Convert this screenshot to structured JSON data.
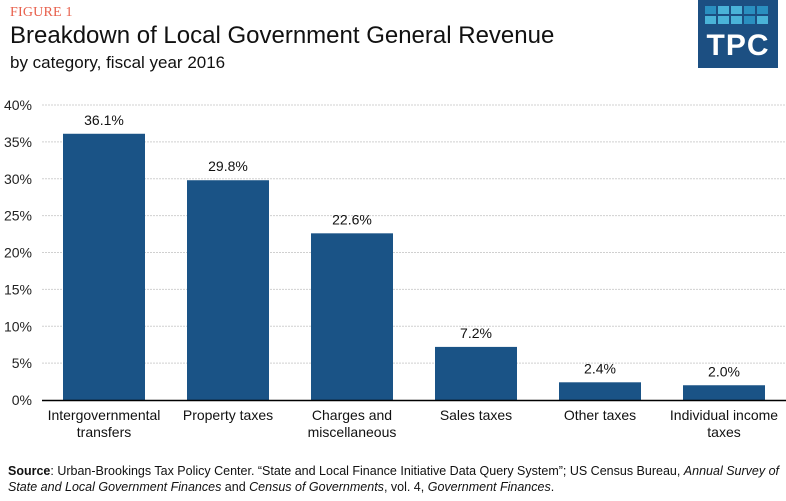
{
  "header": {
    "figure_label": "FIGURE 1",
    "title": "Breakdown of Local Government General Revenue",
    "subtitle": "by category, fiscal year 2016"
  },
  "logo": {
    "text": "TPC",
    "icon": "tpc-grid-logo-icon"
  },
  "colors": {
    "bar": "#1a5386",
    "accent": "#e8604c",
    "logo_bg": "#1c4f82",
    "grid": "#d0d0d0",
    "axis": "#000000"
  },
  "chart_data": {
    "type": "bar",
    "title": "Breakdown of Local Government General Revenue",
    "subtitle": "by category, fiscal year 2016",
    "xlabel": "",
    "ylabel": "",
    "categories": [
      [
        "Intergovernmental",
        "transfers"
      ],
      [
        "Property taxes"
      ],
      [
        "Charges and",
        "miscellaneous"
      ],
      [
        "Sales taxes"
      ],
      [
        "Other taxes"
      ],
      [
        "Individual income",
        "taxes"
      ]
    ],
    "values": [
      36.1,
      29.8,
      22.6,
      7.2,
      2.4,
      2.0
    ],
    "data_labels": [
      "36.1%",
      "29.8%",
      "22.6%",
      "7.2%",
      "2.4%",
      "2.0%"
    ],
    "ylim": [
      0,
      40
    ],
    "yticks": [
      0,
      5,
      10,
      15,
      20,
      25,
      30,
      35,
      40
    ],
    "ytick_labels": [
      "0%",
      "5%",
      "10%",
      "15%",
      "20%",
      "25%",
      "30%",
      "35%",
      "40%"
    ],
    "grid": true,
    "legend": "none"
  },
  "source": {
    "label": "Source",
    "parts": [
      {
        "text": ": Urban-Brookings Tax Policy Center. “State and Local Finance Initiative Data Query System”; US Census Bureau, ",
        "italic": false
      },
      {
        "text": "Annual Survey of State and Local Government Finances",
        "italic": true
      },
      {
        "text": " and ",
        "italic": false
      },
      {
        "text": "Census of Governments",
        "italic": true
      },
      {
        "text": ", vol. 4, ",
        "italic": false
      },
      {
        "text": "Government Finances",
        "italic": true
      },
      {
        "text": ".",
        "italic": false
      }
    ]
  }
}
